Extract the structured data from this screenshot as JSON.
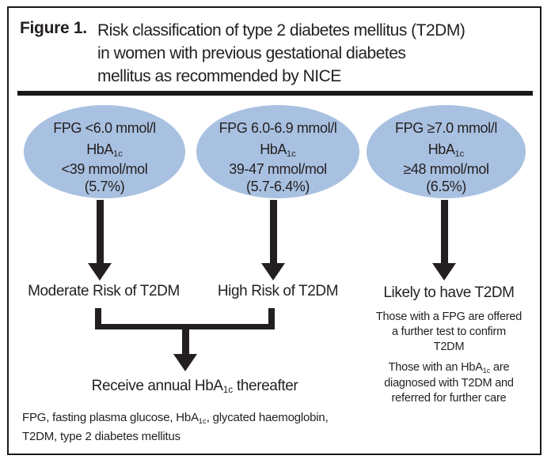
{
  "figure": {
    "label": "Figure 1.",
    "title_lines": [
      "Risk classification of type 2 diabetes mellitus (T2DM)",
      "in women with previous gestational diabetes",
      "mellitus as recommended by NICE"
    ]
  },
  "colors": {
    "ellipse_fill": "#a9c1e1",
    "ink": "#231f20"
  },
  "nodes": [
    {
      "fpg": "FPG <6.0 mmol/l",
      "hba_prefix": "HbA",
      "hba_sub": "1c",
      "range": "<39 mmol/mol",
      "pct": "(5.7%)",
      "outcome": "Moderate Risk of T2DM"
    },
    {
      "fpg": "FPG 6.0-6.9 mmol/l",
      "hba_prefix": "HbA",
      "hba_sub": "1c",
      "range": "39-47 mmol/mol",
      "pct": "(5.7-6.4%)",
      "outcome": "High Risk of T2DM"
    },
    {
      "fpg": "FPG ≥7.0 mmol/l",
      "hba_prefix": "HbA",
      "hba_sub": "1c",
      "range": "≥48 mmol/mol",
      "pct": "(6.5%)",
      "outcome": "Likely to have T2DM"
    }
  ],
  "right_notes": {
    "note1_lines": [
      "Those with a FPG are offered",
      "a further test to confirm",
      "T2DM"
    ],
    "note2": {
      "line1_pre": "Those with an HbA",
      "sub": "1c",
      "line1_post": " are",
      "lines": [
        "diagnosed with T2DM and",
        "referred for further care"
      ]
    }
  },
  "merge": {
    "pre": "Receive annual HbA",
    "sub": "1c",
    "post": " thereafter"
  },
  "footnote": {
    "line1_pre": "FPG, fasting plasma glucose, HbA",
    "line1_sub": "1c",
    "line1_post": ", glycated haemoglobin,",
    "line2": "T2DM, type 2 diabetes mellitus"
  }
}
